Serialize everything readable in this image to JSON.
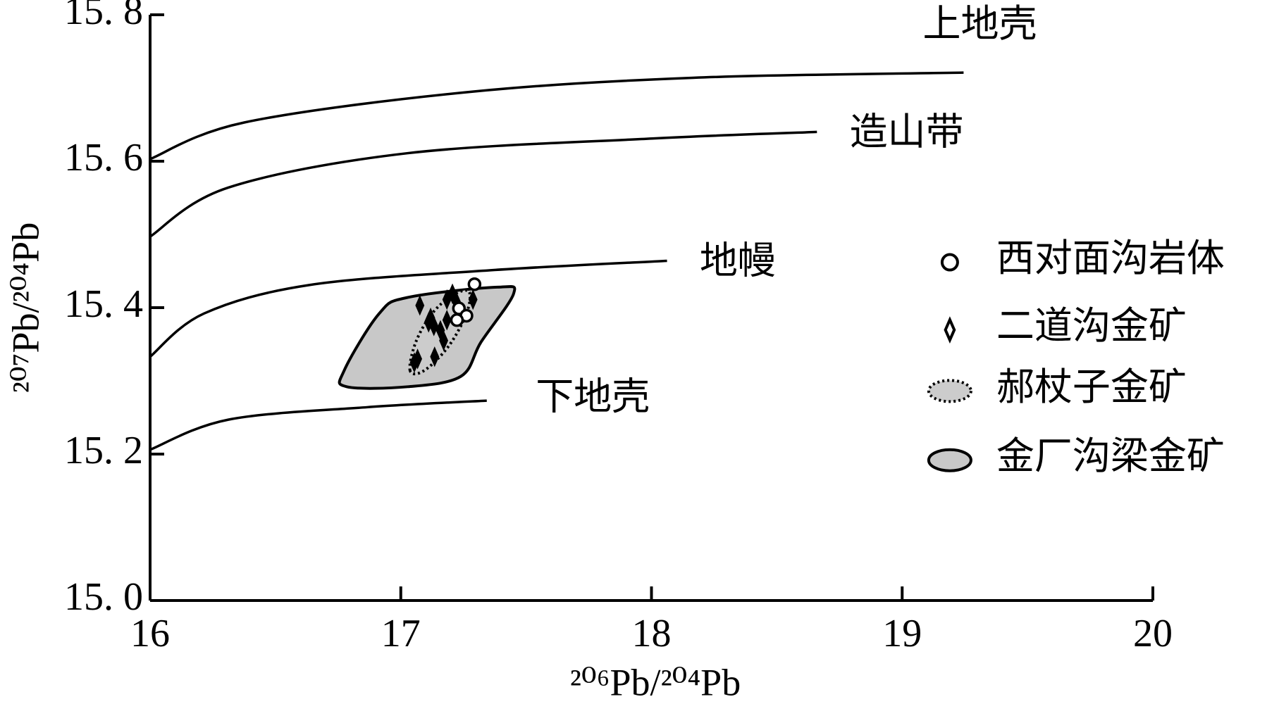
{
  "chart_data": {
    "type": "scatter",
    "xlabel": "²⁰⁶Pb/²⁰⁴Pb",
    "ylabel": "²⁰⁷Pb/²⁰⁴Pb",
    "xlim": [
      16,
      20
    ],
    "ylim": [
      15.0,
      15.8
    ],
    "xticks": [
      16,
      17,
      18,
      19,
      20
    ],
    "yticks": [
      {
        "value": 15.0,
        "label": "15. 0"
      },
      {
        "value": 15.2,
        "label": "15. 2"
      },
      {
        "value": 15.4,
        "label": "15. 4"
      },
      {
        "value": 15.6,
        "label": "15. 6"
      },
      {
        "value": 15.8,
        "label": "15. 8"
      }
    ],
    "curves": [
      {
        "name": "上地壳",
        "x": [
          16.0,
          16.377,
          17.255,
          18.166,
          19.245
        ],
        "y": [
          15.603,
          15.653,
          15.694,
          15.714,
          15.721
        ]
      },
      {
        "name": "造山带",
        "x": [
          16.0,
          16.312,
          17.028,
          18.003,
          18.66
        ],
        "y": [
          15.497,
          15.564,
          15.611,
          15.631,
          15.64
        ]
      },
      {
        "name": "地幔",
        "x": [
          16.0,
          16.215,
          16.637,
          17.353,
          18.062
        ],
        "y": [
          15.333,
          15.392,
          15.431,
          15.451,
          15.464
        ]
      },
      {
        "name": "下地壳",
        "x": [
          16.0,
          16.312,
          16.865,
          17.343
        ],
        "y": [
          15.206,
          15.247,
          15.264,
          15.273
        ]
      }
    ],
    "series": [
      {
        "name": "西对面沟岩体",
        "marker": "circle",
        "color": "#ffffff",
        "x": [
          17.294,
          17.232,
          17.262,
          17.224
        ],
        "y": [
          15.432,
          15.399,
          15.389,
          15.383
        ]
      },
      {
        "name": "二道沟金矿",
        "marker": "diamond",
        "color": "#000000",
        "x": [
          17.076,
          17.184,
          17.206,
          17.288,
          17.119,
          17.132,
          17.158,
          17.111,
          17.184,
          17.067,
          17.054,
          17.135,
          17.171,
          17.223
        ],
        "y": [
          15.403,
          15.411,
          15.419,
          15.411,
          15.386,
          15.375,
          15.369,
          15.38,
          15.383,
          15.33,
          15.325,
          15.333,
          15.355,
          15.407
        ]
      },
      {
        "name": "郝杖子金矿",
        "marker": "dotted-region",
        "color": "#cccccc",
        "x": [
          17.037,
          17.06,
          17.125,
          17.207,
          17.272,
          17.262,
          17.19,
          17.093
        ],
        "y": [
          15.314,
          15.353,
          15.392,
          15.417,
          15.422,
          15.392,
          15.347,
          15.314
        ]
      },
      {
        "name": "金厂沟梁金矿",
        "marker": "region",
        "color": "#c8c8c8",
        "x": [
          16.784,
          16.774,
          16.914,
          17.028,
          17.385,
          17.45,
          17.32,
          17.239,
          17.028
        ],
        "y": [
          15.292,
          15.314,
          15.392,
          15.414,
          15.428,
          15.419,
          15.353,
          15.306,
          15.292
        ]
      }
    ]
  }
}
